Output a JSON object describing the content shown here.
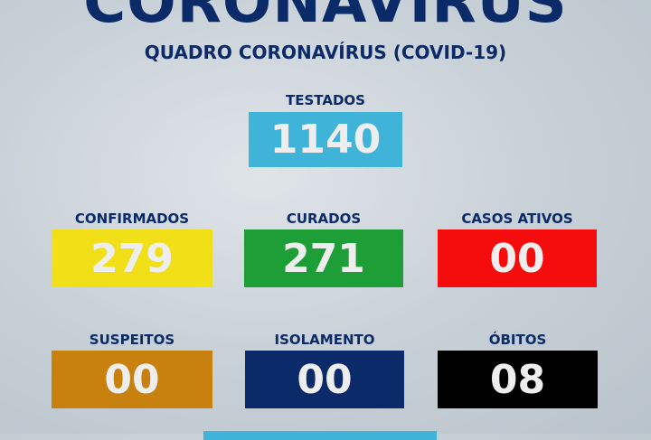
{
  "header": {
    "title": "CORONAVÍRUS",
    "subtitle": "QUADRO CORONAVÍRUS (COVID-19)"
  },
  "stats": [
    {
      "label": "TESTADOS",
      "value": "1140",
      "color": "#3fb4d8"
    },
    {
      "label": "CONFIRMADOS",
      "value": "279",
      "color": "#f1df18"
    },
    {
      "label": "CURADOS",
      "value": "271",
      "color": "#1e9e36"
    },
    {
      "label": "CASOS ATIVOS",
      "value": "00",
      "color": "#f50d0d"
    },
    {
      "label": "SUSPEITOS",
      "value": "00",
      "color": "#c8800f"
    },
    {
      "label": "ISOLAMENTO",
      "value": "00",
      "color": "#0b2a6a"
    },
    {
      "label": "ÓBITOS",
      "value": "08",
      "color": "#000000"
    }
  ],
  "footer": {
    "color": "#3fb4d8"
  }
}
